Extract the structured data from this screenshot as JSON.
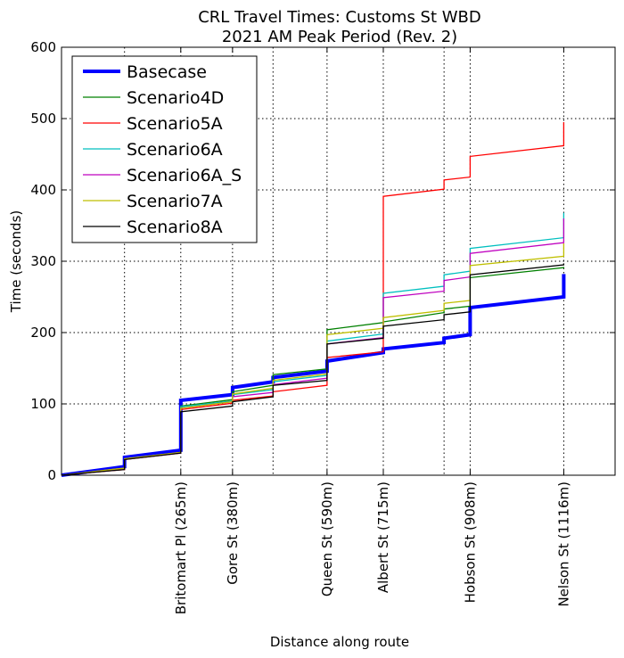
{
  "chart_data": {
    "type": "line",
    "title": [
      "CRL Travel Times: Customs St WBD",
      "2021 AM Peak Period (Rev. 2)"
    ],
    "xlabel": "Distance along route",
    "ylabel": "Time (seconds)",
    "xlim": [
      0,
      1230
    ],
    "ylim": [
      0,
      600
    ],
    "yticks": [
      0,
      100,
      200,
      300,
      400,
      500,
      600
    ],
    "xticks": [
      {
        "x": 265,
        "label": "Britomart Pl (265m)"
      },
      {
        "x": 380,
        "label": "Gore St (380m)"
      },
      {
        "x": 590,
        "label": "Queen St (590m)"
      },
      {
        "x": 715,
        "label": "Albert St (715m)"
      },
      {
        "x": 908,
        "label": "Hobson St (908m)"
      },
      {
        "x": 1116,
        "label": "Nelson St (1116m)"
      }
    ],
    "vgrid": [
      140,
      265,
      380,
      470,
      590,
      715,
      850,
      908,
      1116
    ],
    "grid": true,
    "legend_position": "top-left",
    "series": [
      {
        "name": "Basecase",
        "color": "#0000ff",
        "width": 4,
        "points": [
          [
            0,
            0
          ],
          [
            140,
            12
          ],
          [
            140,
            25
          ],
          [
            265,
            35
          ],
          [
            265,
            105
          ],
          [
            380,
            113
          ],
          [
            380,
            123
          ],
          [
            470,
            131
          ],
          [
            470,
            137
          ],
          [
            590,
            146
          ],
          [
            590,
            160
          ],
          [
            715,
            172
          ],
          [
            715,
            177
          ],
          [
            850,
            186
          ],
          [
            850,
            192
          ],
          [
            908,
            197
          ],
          [
            908,
            235
          ],
          [
            1116,
            250
          ],
          [
            1116,
            282
          ]
        ]
      },
      {
        "name": "Scenario4D",
        "color": "#008000",
        "width": 1.3,
        "points": [
          [
            0,
            0
          ],
          [
            140,
            10
          ],
          [
            140,
            23
          ],
          [
            265,
            32
          ],
          [
            265,
            97
          ],
          [
            380,
            106
          ],
          [
            380,
            117
          ],
          [
            470,
            126
          ],
          [
            470,
            141
          ],
          [
            590,
            149
          ],
          [
            590,
            204
          ],
          [
            715,
            214
          ],
          [
            715,
            215
          ],
          [
            850,
            228
          ],
          [
            850,
            233
          ],
          [
            908,
            237
          ],
          [
            908,
            277
          ],
          [
            1116,
            291
          ],
          [
            1116,
            292
          ]
        ]
      },
      {
        "name": "Scenario5A",
        "color": "#ff0000",
        "width": 1.3,
        "points": [
          [
            0,
            0
          ],
          [
            140,
            8
          ],
          [
            140,
            22
          ],
          [
            265,
            31
          ],
          [
            265,
            92
          ],
          [
            380,
            101
          ],
          [
            380,
            105
          ],
          [
            470,
            111
          ],
          [
            470,
            117
          ],
          [
            590,
            126
          ],
          [
            590,
            165
          ],
          [
            715,
            173
          ],
          [
            715,
            391
          ],
          [
            850,
            401
          ],
          [
            850,
            414
          ],
          [
            908,
            418
          ],
          [
            908,
            447
          ],
          [
            1116,
            462
          ],
          [
            1116,
            495
          ]
        ]
      },
      {
        "name": "Scenario6A",
        "color": "#00bfbf",
        "width": 1.3,
        "points": [
          [
            0,
            0
          ],
          [
            140,
            10
          ],
          [
            140,
            23
          ],
          [
            265,
            32
          ],
          [
            265,
            96
          ],
          [
            380,
            104
          ],
          [
            380,
            113
          ],
          [
            470,
            120
          ],
          [
            470,
            131
          ],
          [
            590,
            140
          ],
          [
            590,
            188
          ],
          [
            715,
            198
          ],
          [
            715,
            255
          ],
          [
            850,
            265
          ],
          [
            850,
            281
          ],
          [
            908,
            286
          ],
          [
            908,
            318
          ],
          [
            1116,
            333
          ],
          [
            1116,
            368
          ]
        ]
      },
      {
        "name": "Scenario6A_S",
        "color": "#bf00bf",
        "width": 1.3,
        "points": [
          [
            0,
            0
          ],
          [
            140,
            10
          ],
          [
            140,
            23
          ],
          [
            265,
            32
          ],
          [
            265,
            94
          ],
          [
            380,
            103
          ],
          [
            380,
            110
          ],
          [
            470,
            116
          ],
          [
            470,
            127
          ],
          [
            590,
            136
          ],
          [
            590,
            184
          ],
          [
            715,
            193
          ],
          [
            715,
            249
          ],
          [
            850,
            258
          ],
          [
            850,
            273
          ],
          [
            908,
            278
          ],
          [
            908,
            311
          ],
          [
            1116,
            326
          ],
          [
            1116,
            360
          ]
        ]
      },
      {
        "name": "Scenario7A",
        "color": "#bfbf00",
        "width": 1.3,
        "points": [
          [
            0,
            0
          ],
          [
            140,
            10
          ],
          [
            140,
            23
          ],
          [
            265,
            32
          ],
          [
            265,
            94
          ],
          [
            380,
            103
          ],
          [
            380,
            114
          ],
          [
            470,
            122
          ],
          [
            470,
            133
          ],
          [
            590,
            142
          ],
          [
            590,
            197
          ],
          [
            715,
            206
          ],
          [
            715,
            221
          ],
          [
            850,
            231
          ],
          [
            850,
            241
          ],
          [
            908,
            245
          ],
          [
            908,
            294
          ],
          [
            1116,
            307
          ],
          [
            1116,
            325
          ]
        ]
      },
      {
        "name": "Scenario8A",
        "color": "#000000",
        "width": 1.3,
        "points": [
          [
            0,
            0
          ],
          [
            140,
            8
          ],
          [
            140,
            22
          ],
          [
            265,
            31
          ],
          [
            265,
            89
          ],
          [
            380,
            97
          ],
          [
            380,
            103
          ],
          [
            470,
            110
          ],
          [
            470,
            126
          ],
          [
            590,
            133
          ],
          [
            590,
            184
          ],
          [
            715,
            192
          ],
          [
            715,
            209
          ],
          [
            850,
            218
          ],
          [
            850,
            225
          ],
          [
            908,
            229
          ],
          [
            908,
            281
          ],
          [
            1116,
            295
          ],
          [
            1116,
            297
          ]
        ]
      }
    ]
  }
}
